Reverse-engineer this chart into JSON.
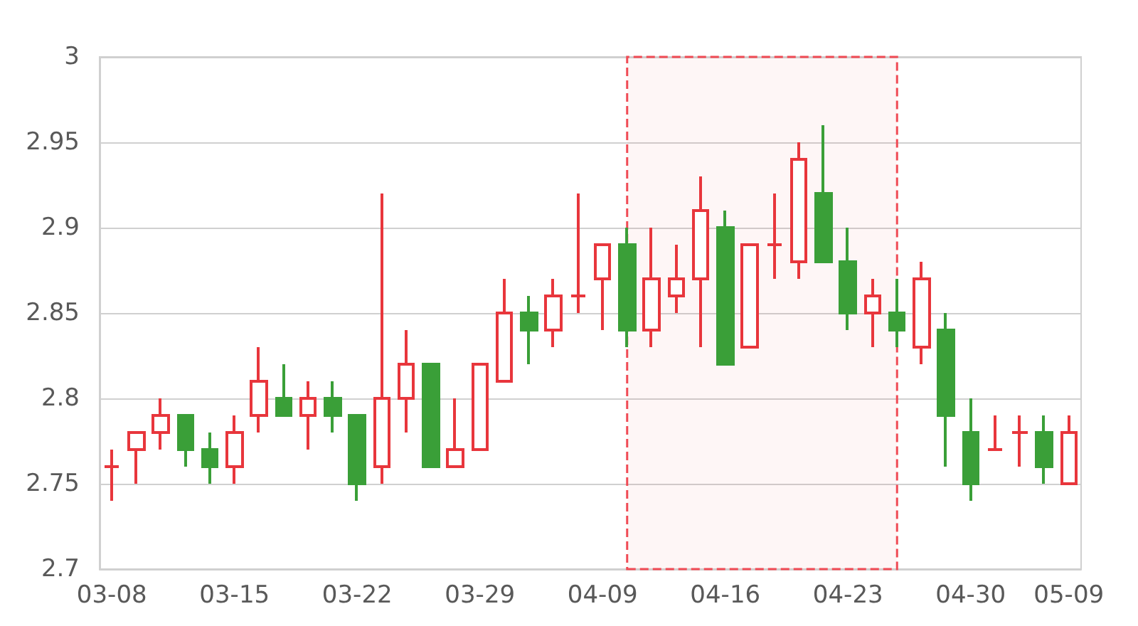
{
  "chart_data": {
    "type": "candlestick",
    "categories": [
      "03-08",
      null,
      null,
      null,
      null,
      "03-15",
      null,
      null,
      null,
      null,
      "03-22",
      null,
      null,
      null,
      null,
      "03-29",
      null,
      null,
      null,
      null,
      "04-09",
      null,
      null,
      null,
      null,
      "04-16",
      null,
      null,
      null,
      null,
      "04-23",
      null,
      null,
      null,
      null,
      "04-30",
      null,
      null,
      null,
      "05-09"
    ],
    "ohlc": [
      [
        2.76,
        2.77,
        2.74,
        2.76
      ],
      [
        2.77,
        2.78,
        2.75,
        2.78
      ],
      [
        2.78,
        2.8,
        2.77,
        2.79
      ],
      [
        2.79,
        2.79,
        2.76,
        2.77
      ],
      [
        2.77,
        2.78,
        2.75,
        2.76
      ],
      [
        2.76,
        2.79,
        2.75,
        2.78
      ],
      [
        2.79,
        2.83,
        2.78,
        2.81
      ],
      [
        2.8,
        2.82,
        2.79,
        2.79
      ],
      [
        2.79,
        2.81,
        2.77,
        2.8
      ],
      [
        2.8,
        2.81,
        2.78,
        2.79
      ],
      [
        2.79,
        2.79,
        2.74,
        2.75
      ],
      [
        2.76,
        2.92,
        2.75,
        2.8
      ],
      [
        2.8,
        2.84,
        2.78,
        2.82
      ],
      [
        2.82,
        2.82,
        2.76,
        2.76
      ],
      [
        2.76,
        2.8,
        2.76,
        2.77
      ],
      [
        2.77,
        2.82,
        2.77,
        2.82
      ],
      [
        2.81,
        2.87,
        2.81,
        2.85
      ],
      [
        2.85,
        2.86,
        2.82,
        2.84
      ],
      [
        2.84,
        2.87,
        2.83,
        2.86
      ],
      [
        2.86,
        2.92,
        2.85,
        2.86
      ],
      [
        2.87,
        2.89,
        2.84,
        2.89
      ],
      [
        2.89,
        2.9,
        2.83,
        2.84
      ],
      [
        2.84,
        2.9,
        2.83,
        2.87
      ],
      [
        2.86,
        2.89,
        2.85,
        2.87
      ],
      [
        2.87,
        2.93,
        2.83,
        2.91
      ],
      [
        2.9,
        2.91,
        2.82,
        2.82
      ],
      [
        2.83,
        2.89,
        2.83,
        2.89
      ],
      [
        2.89,
        2.92,
        2.87,
        2.89
      ],
      [
        2.88,
        2.95,
        2.87,
        2.94
      ],
      [
        2.92,
        2.96,
        2.88,
        2.88
      ],
      [
        2.88,
        2.9,
        2.84,
        2.85
      ],
      [
        2.85,
        2.87,
        2.83,
        2.86
      ],
      [
        2.85,
        2.87,
        2.83,
        2.84
      ],
      [
        2.83,
        2.88,
        2.82,
        2.87
      ],
      [
        2.84,
        2.85,
        2.76,
        2.79
      ],
      [
        2.78,
        2.8,
        2.74,
        2.75
      ],
      [
        2.77,
        2.79,
        2.77,
        2.77
      ],
      [
        2.78,
        2.79,
        2.76,
        2.78
      ],
      [
        2.78,
        2.79,
        2.75,
        2.76
      ],
      [
        2.75,
        2.79,
        2.75,
        2.78
      ]
    ],
    "colors": [
      "#e8363c",
      "#e8363c",
      "#e8363c",
      "#3a9f38",
      "#3a9f38",
      "#e8363c",
      "#e8363c",
      "#3a9f38",
      "#e8363c",
      "#3a9f38",
      "#3a9f38",
      "#e8363c",
      "#e8363c",
      "#3a9f38",
      "#e8363c",
      "#e8363c",
      "#e8363c",
      "#3a9f38",
      "#e8363c",
      "#e8363c",
      "#e8363c",
      "#3a9f38",
      "#e8363c",
      "#e8363c",
      "#e8363c",
      "#3a9f38",
      "#e8363c",
      "#e8363c",
      "#e8363c",
      "#3a9f38",
      "#3a9f38",
      "#e8363c",
      "#3a9f38",
      "#e8363c",
      "#3a9f38",
      "#3a9f38",
      "#e8363c",
      "#e8363c",
      "#3a9f38",
      "#e8363c"
    ],
    "ylim": [
      2.7,
      3
    ],
    "yticks": [
      2.7,
      2.75,
      2.8,
      2.85,
      2.9,
      2.95,
      3
    ],
    "grid": "y"
  }
}
